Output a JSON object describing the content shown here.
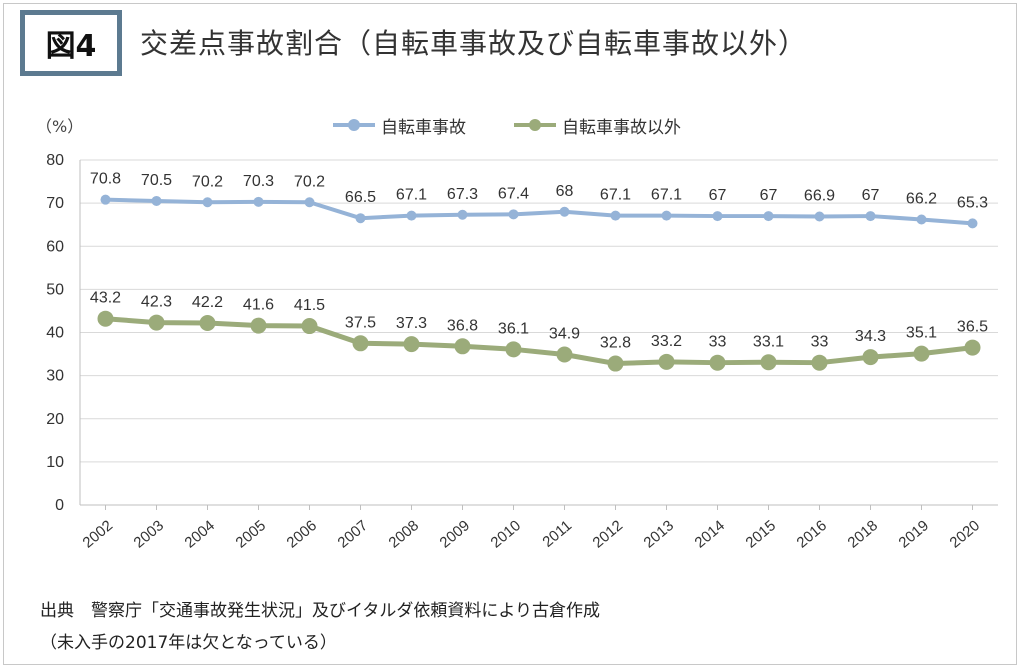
{
  "figure": {
    "badge": "図4",
    "title": "交差点事故割合（自転車事故及び自転車事故以外）",
    "unit": "（%）",
    "source": "出典　警察庁「交通事故発生状況」及びイタルダ依頼資料により古倉作成",
    "note": "（未入手の2017年は欠となっている）"
  },
  "colors": {
    "series1": "#95b3d7",
    "series2": "#9bab7a",
    "grid": "#d9d9d9",
    "axis": "#bfbfbf",
    "badge_border": "#5c7a90"
  },
  "chart_data": {
    "type": "line",
    "categories": [
      "2002",
      "2003",
      "2004",
      "2005",
      "2006",
      "2007",
      "2008",
      "2009",
      "2010",
      "2011",
      "2012",
      "2013",
      "2014",
      "2015",
      "2016",
      "2018",
      "2019",
      "2020"
    ],
    "series": [
      {
        "name": "自転車事故",
        "values": [
          70.8,
          70.5,
          70.2,
          70.3,
          70.2,
          66.5,
          67.1,
          67.3,
          67.4,
          68,
          67.1,
          67.1,
          67,
          67,
          66.9,
          67,
          66.2,
          65.3
        ]
      },
      {
        "name": "自転車事故以外",
        "values": [
          43.2,
          42.3,
          42.2,
          41.6,
          41.5,
          37.5,
          37.3,
          36.8,
          36.1,
          34.9,
          32.8,
          33.2,
          33,
          33.1,
          33,
          34.3,
          35.1,
          36.5
        ]
      }
    ],
    "ylim": [
      0,
      80
    ],
    "yticks": [
      0,
      10,
      20,
      30,
      40,
      50,
      60,
      70,
      80
    ],
    "grid": true,
    "legend": "top-center"
  }
}
